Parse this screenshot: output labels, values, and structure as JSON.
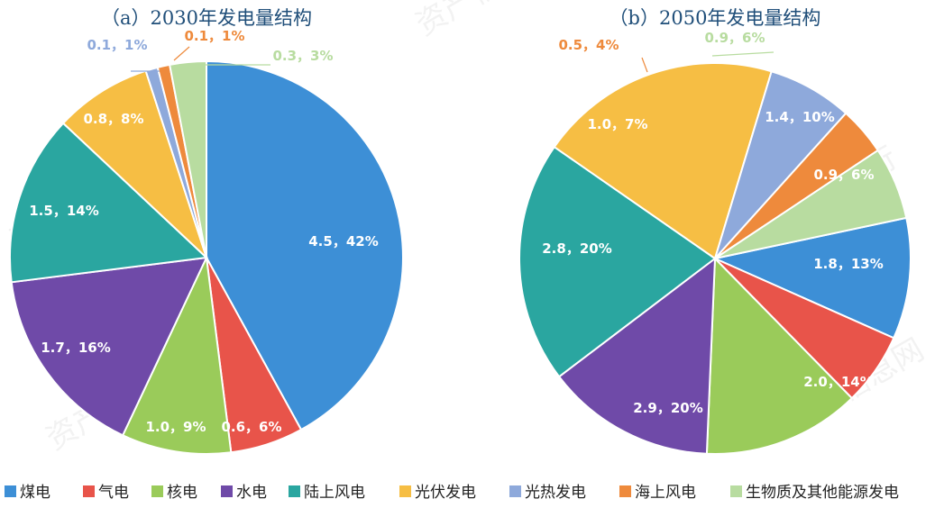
{
  "watermark": {
    "line1": "资产信息网",
    "line2": "千际投行"
  },
  "legend": [
    {
      "label": "煤电",
      "color": "#3d8fd6"
    },
    {
      "label": "气电",
      "color": "#e8544a"
    },
    {
      "label": "核电",
      "color": "#9acb5a"
    },
    {
      "label": "水电",
      "color": "#6f4aa8"
    },
    {
      "label": "陆上风电",
      "color": "#2aa6a0"
    },
    {
      "label": "光伏发电",
      "color": "#f6be44"
    },
    {
      "label": "光热发电",
      "color": "#8ea9db"
    },
    {
      "label": "海上风电",
      "color": "#ee8a3c"
    },
    {
      "label": "生物质及其他能源发电",
      "color": "#b8dca0"
    }
  ],
  "chart_data": [
    {
      "type": "pie",
      "title": "（a）2030年发电量结构",
      "categories": [
        "煤电",
        "气电",
        "核电",
        "水电",
        "陆上风电",
        "光伏发电",
        "光热发电",
        "海上风电",
        "生物质及其他能源发电"
      ],
      "values": [
        4.5,
        0.6,
        1.0,
        1.7,
        1.5,
        0.8,
        0.1,
        0.1,
        0.3
      ],
      "percents": [
        42,
        6,
        9,
        16,
        14,
        8,
        1,
        1,
        3
      ],
      "labels": [
        "4.5，42%",
        "0.6，6%",
        "1.0，9%",
        "1.7，16%",
        "1.5，14%",
        "0.8，8%",
        "0.1，1%",
        "0.1，1%",
        "0.3，3%"
      ]
    },
    {
      "type": "pie",
      "title": "（b）2050年发电量结构",
      "categories": [
        "煤电",
        "气电",
        "核电",
        "水电",
        "陆上风电",
        "光伏发电",
        "光热发电",
        "海上风电",
        "生物质及其他能源发电"
      ],
      "values": [
        1.4,
        0.9,
        1.8,
        2.0,
        2.9,
        2.8,
        1.0,
        0.5,
        0.9
      ],
      "percents": [
        10,
        6,
        13,
        14,
        20,
        20,
        7,
        4,
        6
      ],
      "labels": [
        "1.4，10%",
        "0.9，6%",
        "1.8，13%",
        "2.0，14%",
        "2.9，20%",
        "2.8，20%",
        "1.0，7%",
        "0.5，4%",
        "0.9，6%"
      ]
    }
  ]
}
